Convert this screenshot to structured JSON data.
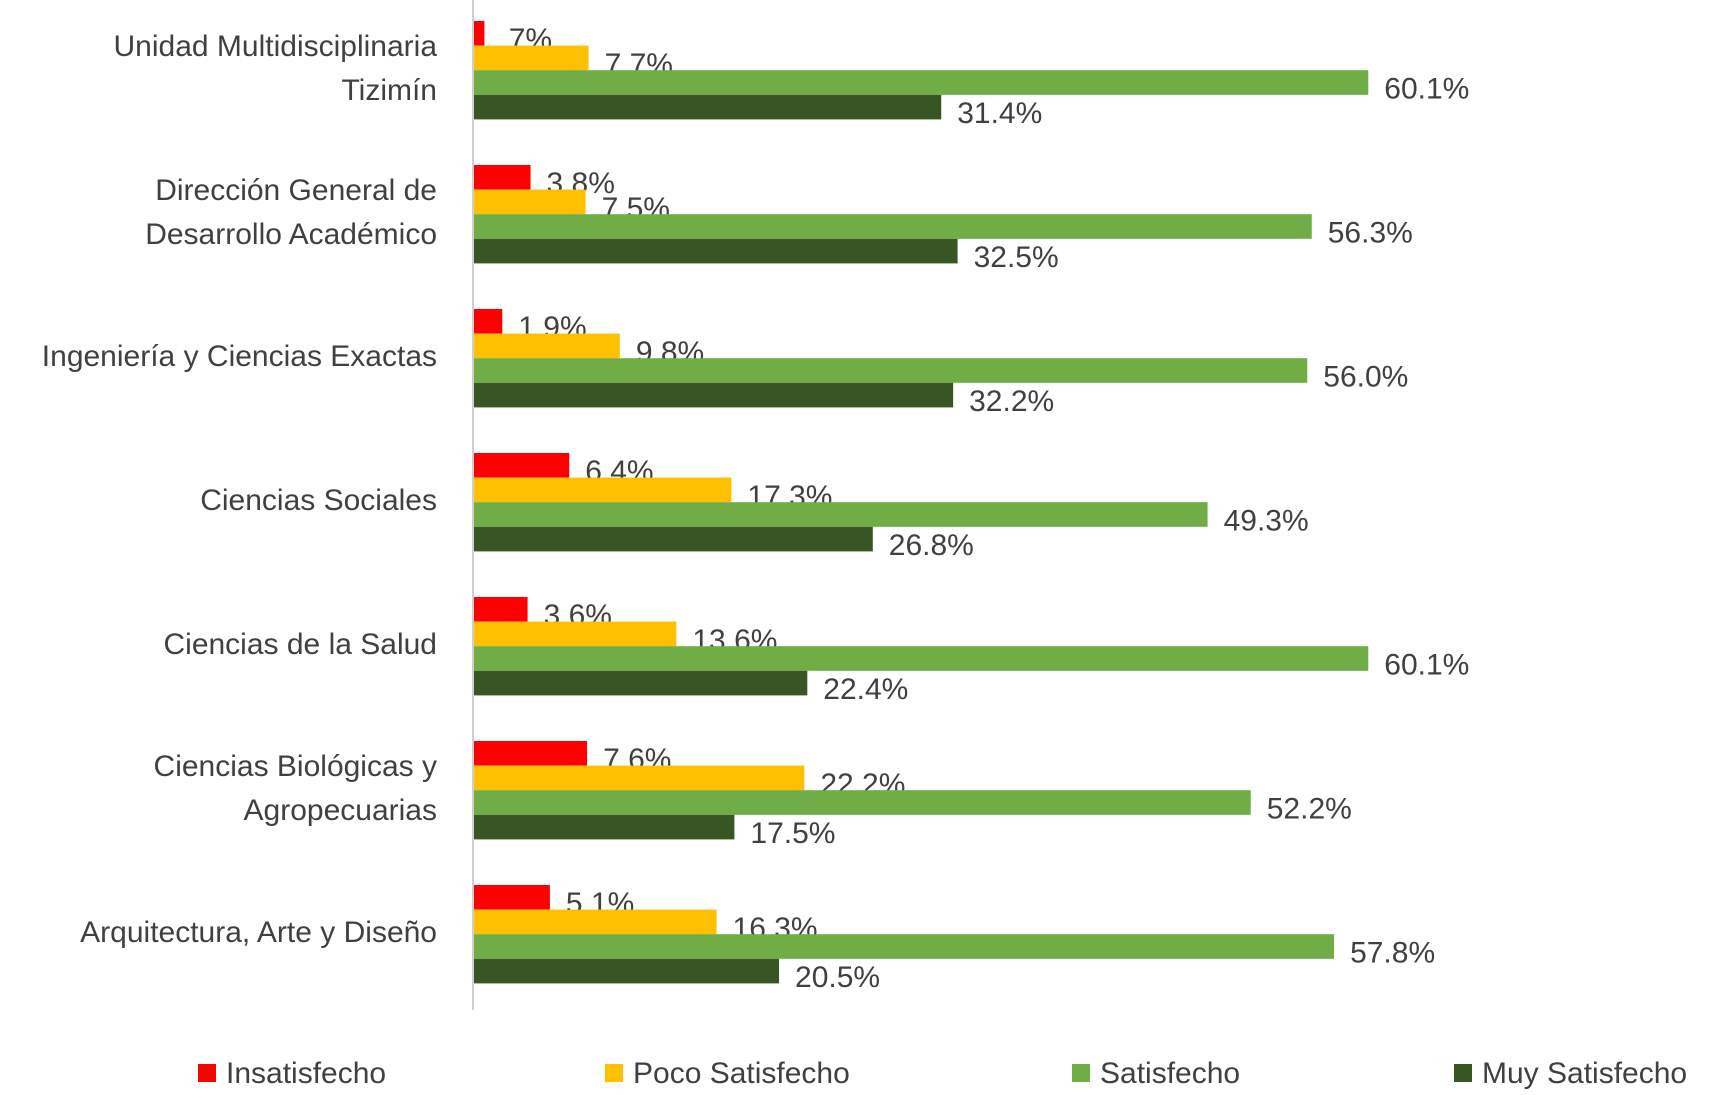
{
  "chart_data": {
    "type": "bar",
    "orientation": "horizontal",
    "categories": [
      "Unidad Multidisciplinaria\nTizimín",
      "Dirección General de\nDesarrollo Académico",
      "Ingeniería y Ciencias Exactas",
      "Ciencias Sociales",
      "Ciencias de la Salud",
      "Ciencias Biológicas y\nAgropecuarias",
      "Arquitectura, Arte y Diseño"
    ],
    "series": [
      {
        "name": "Insatisfecho",
        "color": "#ff0000",
        "values": [
          0.7,
          3.8,
          1.9,
          6.4,
          3.6,
          7.6,
          5.1
        ],
        "value_labels": [
          ".7%",
          "3.8%",
          "1.9%",
          "6.4%",
          "3.6%",
          "7.6%",
          "5.1%"
        ]
      },
      {
        "name": "Poco Satisfecho",
        "color": "#ffc000",
        "values": [
          7.7,
          7.5,
          9.8,
          17.3,
          13.6,
          22.2,
          16.3
        ],
        "value_labels": [
          "7.7%",
          "7.5%",
          "9.8%",
          "17.3%",
          "13.6%",
          "22.2%",
          "16.3%"
        ]
      },
      {
        "name": "Satisfecho",
        "color": "#70ad47",
        "values": [
          60.1,
          56.3,
          56.0,
          49.3,
          60.1,
          52.2,
          57.8
        ],
        "value_labels": [
          "60.1%",
          "56.3%",
          "56.0%",
          "49.3%",
          "60.1%",
          "52.2%",
          "57.8%"
        ]
      },
      {
        "name": "Muy Satisfecho",
        "color": "#375623",
        "values": [
          31.4,
          32.5,
          32.2,
          26.8,
          22.4,
          17.5,
          20.5
        ],
        "value_labels": [
          "31.4%",
          "32.5%",
          "32.2%",
          "26.8%",
          "22.4%",
          "17.5%",
          "20.5%"
        ]
      }
    ],
    "legend": "bottom"
  }
}
